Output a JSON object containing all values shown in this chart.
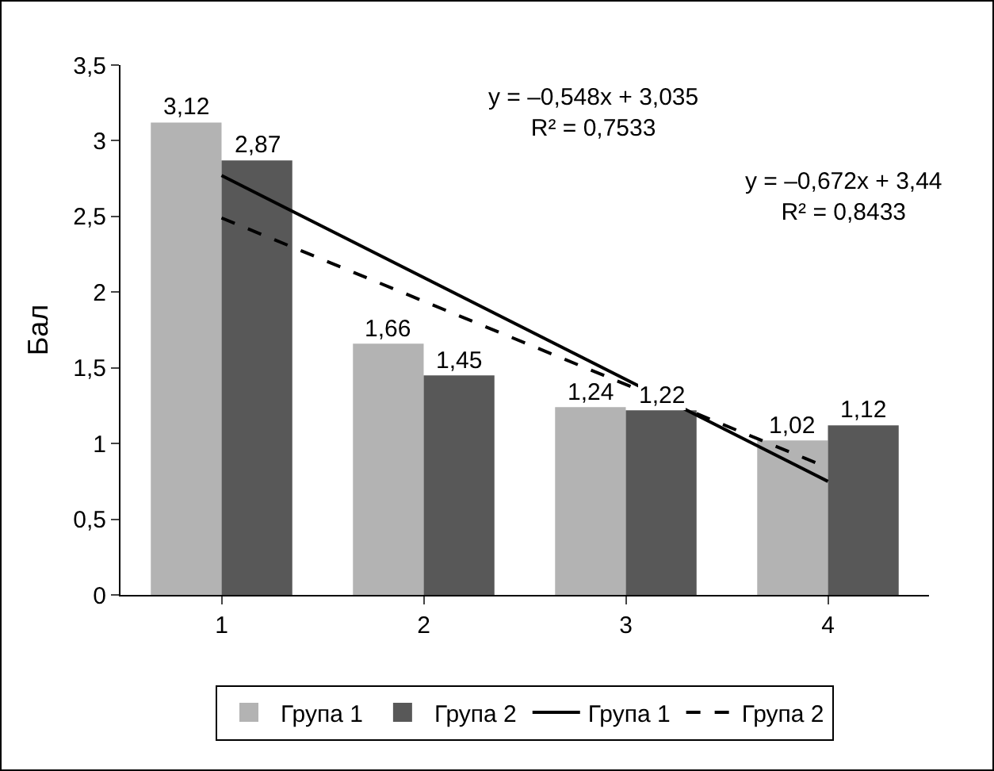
{
  "chart_data": {
    "type": "bar",
    "categories": [
      "1",
      "2",
      "3",
      "4"
    ],
    "ylabel": "Бал",
    "ylim": [
      0,
      3.5
    ],
    "yticks": [
      0,
      {
        "value": 0.5,
        "label": "0,5"
      },
      1,
      {
        "value": 1.5,
        "label": "1,5"
      },
      2,
      {
        "value": 2.5,
        "label": "2,5"
      },
      3,
      {
        "value": 3.5,
        "label": "3,5"
      }
    ],
    "grid": false,
    "legend": "bottom",
    "series": [
      {
        "name": "Група 1",
        "color": "#b3b3b3",
        "values": [
          3.12,
          1.66,
          1.24,
          1.02
        ],
        "value_labels": [
          "3,12",
          "1,66",
          "1,24",
          "1,02"
        ]
      },
      {
        "name": "Група 2",
        "color": "#585858",
        "values": [
          2.87,
          1.45,
          1.22,
          1.12
        ],
        "value_labels": [
          "2,87",
          "1,45",
          "1,22",
          "1,12"
        ]
      },
      {
        "name": "Група 1",
        "type": "line",
        "color": "#000000",
        "line_style": "solid",
        "marker": "none",
        "x": [
          "1",
          "4"
        ],
        "values": [
          2.77,
          0.75
        ]
      },
      {
        "name": "Група 2",
        "type": "line",
        "color": "#000000",
        "line_style": "dashed",
        "marker": "none",
        "x": [
          "1",
          "4"
        ],
        "values": [
          2.49,
          0.84
        ]
      }
    ],
    "annotations": [
      "y = –0,548x + 3,035\nR² = 0,7533",
      "y = –0,672x + 3,44\nR² = 0,8433"
    ]
  }
}
